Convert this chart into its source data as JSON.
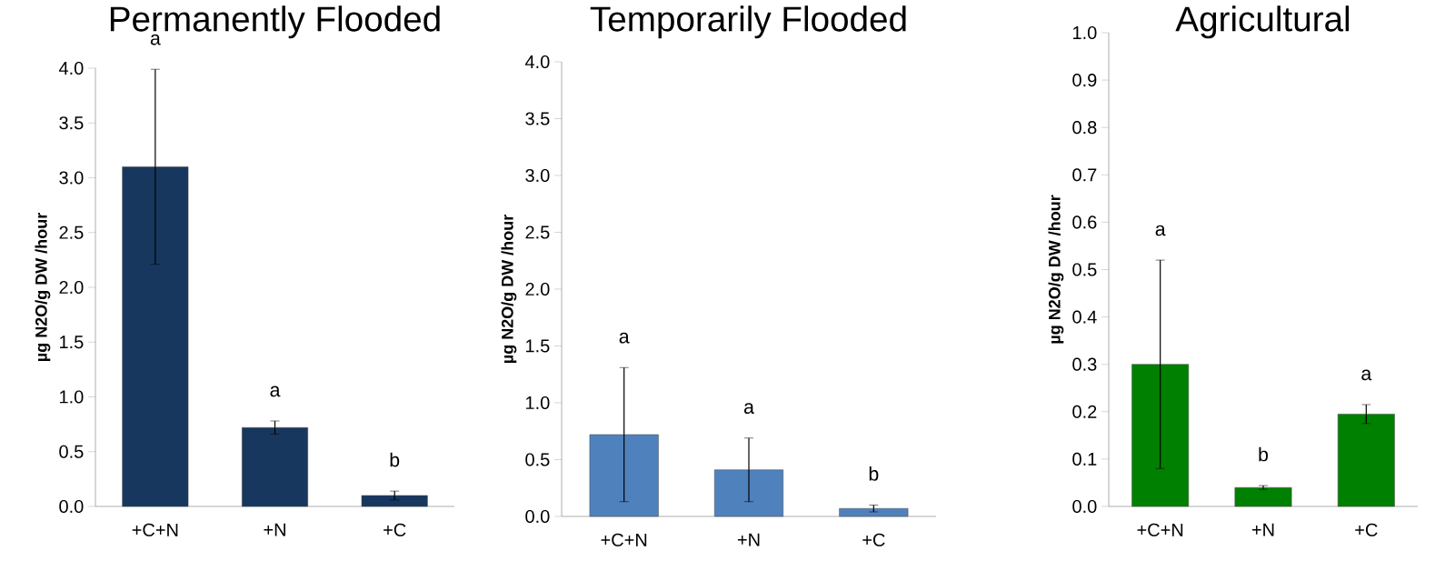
{
  "chart_data": [
    {
      "type": "bar",
      "title": "Permanently Flooded",
      "ylabel": "µg N2O/g DW /hour",
      "categories": [
        "+C+N",
        "+N",
        "+C"
      ],
      "values": [
        3.1,
        0.72,
        0.1
      ],
      "errors": [
        0.89,
        0.06,
        0.04
      ],
      "color": "#17375e",
      "ylim": [
        0,
        4.0
      ],
      "yticks": [
        {
          "value": 0,
          "label": "0.0"
        },
        {
          "value": 0.5,
          "label": "0.5"
        },
        {
          "value": 1,
          "label": "1.0"
        },
        {
          "value": 1.5,
          "label": "1.5"
        },
        {
          "value": 2,
          "label": "2.0"
        },
        {
          "value": 2.5,
          "label": "2.5"
        },
        {
          "value": 3,
          "label": "3.0"
        },
        {
          "value": 3.5,
          "label": "3.5"
        },
        {
          "value": 4,
          "label": "4.0"
        }
      ],
      "annotations": [
        "a",
        "a",
        "b"
      ]
    },
    {
      "type": "bar",
      "title": "Temporarily Flooded",
      "ylabel": "µg N2O/g DW /hour",
      "categories": [
        "+C+N",
        "+N",
        "+C"
      ],
      "values": [
        0.72,
        0.41,
        0.07
      ],
      "errors": [
        0.59,
        0.28,
        0.03
      ],
      "color": "#4f81bd",
      "ylim": [
        0,
        4.0
      ],
      "yticks": [
        {
          "value": 0,
          "label": "0.0"
        },
        {
          "value": 0.5,
          "label": "0.5"
        },
        {
          "value": 1,
          "label": "1.0"
        },
        {
          "value": 1.5,
          "label": "1.5"
        },
        {
          "value": 2,
          "label": "2.0"
        },
        {
          "value": 2.5,
          "label": "2.5"
        },
        {
          "value": 3,
          "label": "3.0"
        },
        {
          "value": 3.5,
          "label": "3.5"
        },
        {
          "value": 4,
          "label": "4.0"
        }
      ],
      "annotations": [
        "a",
        "a",
        "b"
      ]
    },
    {
      "type": "bar",
      "title": "Agricultural",
      "ylabel": "µg N2O/g DW /hour",
      "categories": [
        "+C+N",
        "+N",
        "+C"
      ],
      "values": [
        0.3,
        0.04,
        0.195
      ],
      "errors": [
        0.22,
        0.004,
        0.02
      ],
      "color": "#008000",
      "ylim": [
        0,
        1.0
      ],
      "yticks": [
        {
          "value": 0,
          "label": "0.0"
        },
        {
          "value": 0.1,
          "label": "0.1"
        },
        {
          "value": 0.2,
          "label": "0.2"
        },
        {
          "value": 0.3,
          "label": "0.3"
        },
        {
          "value": 0.4,
          "label": "0.4"
        },
        {
          "value": 0.5,
          "label": "0.5"
        },
        {
          "value": 0.6,
          "label": "0.6"
        },
        {
          "value": 0.7,
          "label": "0.7"
        },
        {
          "value": 0.8,
          "label": "0.8"
        },
        {
          "value": 0.9,
          "label": "0.9"
        },
        {
          "value": 1.0,
          "label": "1.0"
        }
      ],
      "annotations": [
        "a",
        "b",
        "a"
      ]
    }
  ]
}
